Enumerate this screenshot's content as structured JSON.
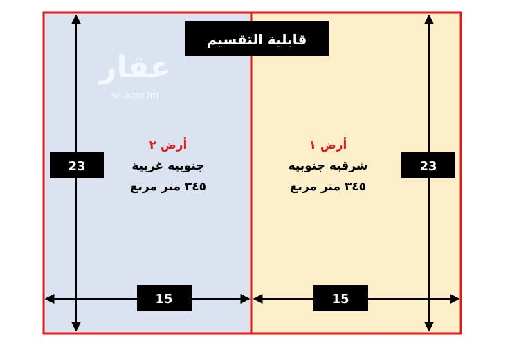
{
  "title": "قابلية التقسيم",
  "watermark": {
    "logo": "عقار",
    "url": "sa.aqar.fm"
  },
  "plots": [
    {
      "name": "أرض ١",
      "direction": "شرقيه جنوبيه",
      "area": "٣٤٥ متر مربع",
      "height_label": "23",
      "width_label": "15",
      "fill": "#fdefc9"
    },
    {
      "name": "أرض ٢",
      "direction": "جنوبيه غربية",
      "area": "٣٤٥ متر مربع",
      "height_label": "23",
      "width_label": "15",
      "fill": "#dbe3f0"
    }
  ],
  "colors": {
    "border": "#e3191c",
    "plot_name": "#e3191c",
    "label_box": "#000000"
  }
}
